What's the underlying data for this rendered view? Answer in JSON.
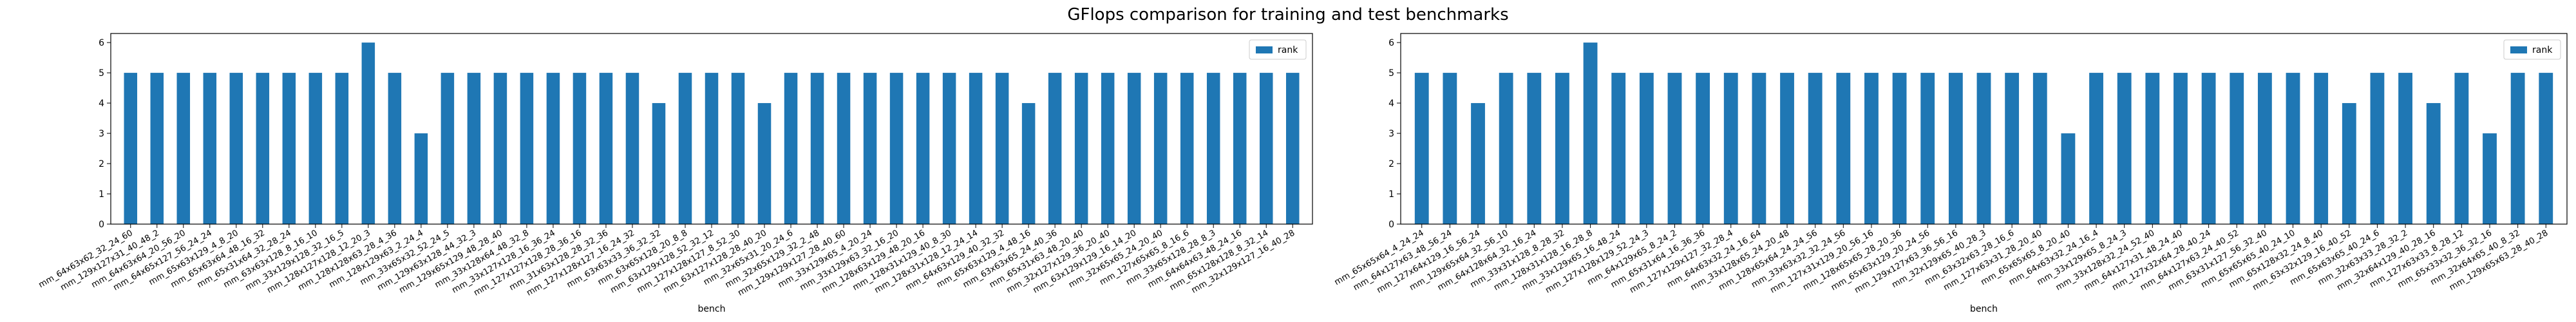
{
  "title": "GFlops comparison for training and test benchmarks",
  "colors": {
    "bar": "#1f77b4",
    "axis": "#000000",
    "legend_border": "#cccccc"
  },
  "chart_data": [
    {
      "type": "bar",
      "xlabel": "bench",
      "ylabel": "",
      "ylim": [
        0,
        6.3
      ],
      "yticks": [
        0,
        1,
        2,
        3,
        4,
        5,
        6
      ],
      "legend": {
        "entries": [
          "rank"
        ],
        "placement": "top-right"
      },
      "grid": false,
      "series": [
        {
          "name": "rank",
          "values": [
            5,
            5,
            5,
            5,
            5,
            5,
            5,
            5,
            5,
            6,
            5,
            3,
            5,
            5,
            5,
            5,
            5,
            5,
            5,
            5,
            4,
            5,
            5,
            5,
            4,
            5,
            5,
            5,
            5,
            5,
            5,
            5,
            5,
            5,
            4,
            5,
            5,
            5,
            5,
            5,
            5,
            5,
            5,
            5,
            5
          ]
        }
      ],
      "categories": [
        "mm_64x63x62_32_24_60",
        "mm_129x127x31_40_48_2",
        "mm_64x63x64_20_56_20",
        "mm_64x65x127_56_24_24",
        "mm_65x63x129_4_8_20",
        "mm_65x63x64_48_16_32",
        "mm_65x31x64_32_28_24",
        "mm_63x63x128_8_16_10",
        "mm_33x129x128_32_16_5",
        "mm_128x127x128_12_20_3",
        "mm_128x128x63_28_4_36",
        "mm_128x129x63_2_24_4",
        "mm_33x65x32_52_24_5",
        "mm_129x63x128_44_32_3",
        "mm_129x65x129_48_28_40",
        "mm_33x128x64_48_32_8",
        "mm_33x127x128_16_36_24",
        "mm_127x127x128_28_36_16",
        "mm_31x63x128_28_32_36",
        "mm_127x128x127_16_24_32",
        "mm_63x63x33_36_32_32",
        "mm_63x65x128_20_8_8",
        "mm_63x129x128_52_32_12",
        "mm_127x128x127_8_52_30",
        "mm_63x127x128_28_40_20",
        "mm_32x65x31_20_24_6",
        "mm_32x65x129_32_2_48",
        "mm_129x129x127_28_40_60",
        "mm_33x129x65_4_20_24",
        "mm_33x129x63_32_16_20",
        "mm_128x63x129_48_20_16",
        "mm_128x31x129_40_8_30",
        "mm_128x31x128_12_24_14",
        "mm_64x63x129_40_32_32",
        "mm_65x63x129_4_48_16",
        "mm_63x63x65_24_40_36",
        "mm_65x31x63_48_20_40",
        "mm_32x127x129_36_20_40",
        "mm_63x129x129_16_14_20",
        "mm_32x65x65_24_20_40",
        "mm_127x65x65_8_16_6",
        "mm_33x65x128_28_8_3",
        "mm_64x64x63_48_24_16",
        "mm_65x128x128_8_32_14",
        "mm_32x129x127_16_40_28"
      ]
    },
    {
      "type": "bar",
      "xlabel": "bench",
      "ylabel": "",
      "ylim": [
        0,
        6.3
      ],
      "yticks": [
        0,
        1,
        2,
        3,
        4,
        5,
        6
      ],
      "legend": {
        "entries": [
          "rank"
        ],
        "placement": "top-right"
      },
      "grid": false,
      "series": [
        {
          "name": "rank",
          "values": [
            5,
            5,
            4,
            5,
            5,
            5,
            6,
            5,
            5,
            5,
            5,
            5,
            5,
            5,
            5,
            5,
            5,
            5,
            5,
            5,
            5,
            5,
            5,
            3,
            5,
            5,
            5,
            5,
            5,
            5,
            5,
            5,
            5,
            4,
            5,
            5,
            4,
            5,
            3,
            5,
            5
          ]
        }
      ],
      "categories": [
        "mm_65x65x64_4_24_24",
        "mm_64x127x63_48_56_24",
        "mm_127x64x129_16_56_24",
        "mm_129x65x64_32_56_10",
        "mm_64x128x64_32_16_24",
        "mm_33x31x128_8_28_32",
        "mm_128x31x128_16_28_8",
        "mm_33x129x65_16_48_24",
        "mm_127x128x129_52_24_3",
        "mm_64x129x65_8_24_2",
        "mm_65x31x64_16_36_36",
        "mm_127x129x127_32_28_4",
        "mm_64x63x32_24_16_64",
        "mm_33x128x65_24_20_48",
        "mm_128x65x64_24_24_56",
        "mm_33x63x32_32_24_56",
        "mm_127x31x129_20_56_16",
        "mm_128x65x65_28_20_36",
        "mm_65x63x129_20_24_56",
        "mm_129x127x63_36_56_16",
        "mm_32x129x65_40_28_3",
        "mm_63x32x63_28_16_6",
        "mm_127x63x31_28_20_40",
        "mm_65x65x65_8_20_40",
        "mm_64x63x32_24_16_4",
        "mm_33x129x65_8_24_3",
        "mm_33x128x32_24_52_40",
        "mm_64x127x31_48_24_40",
        "mm_127x32x64_28_40_24",
        "mm_64x127x63_24_40_52",
        "mm_63x31x127_56_32_40",
        "mm_65x65x65_40_24_10",
        "mm_65x128x32_24_8_40",
        "mm_63x32x129_16_40_52",
        "mm_65x63x65_40_24_6",
        "mm_32x63x33_28_32_2",
        "mm_32x64x129_40_28_16",
        "mm_127x63x33_8_28_12",
        "mm_65x33x32_36_32_16",
        "mm_32x64x65_40_8_32",
        "mm_129x65x63_28_40_28"
      ]
    }
  ]
}
